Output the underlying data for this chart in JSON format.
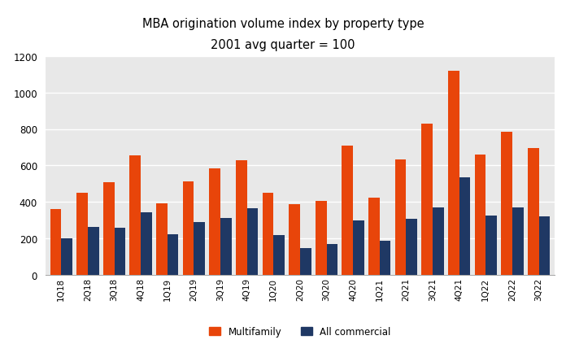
{
  "title_line1": "MBA origination volume index by property type",
  "title_line2": "2001 avg quarter = 100",
  "categories": [
    "1Q18",
    "2Q18",
    "3Q18",
    "4Q18",
    "1Q19",
    "2Q19",
    "3Q19",
    "4Q19",
    "1Q20",
    "2Q20",
    "3Q20",
    "4Q20",
    "1Q21",
    "2Q21",
    "3Q21",
    "4Q21",
    "1Q22",
    "2Q22",
    "3Q22"
  ],
  "multifamily": [
    360,
    450,
    510,
    655,
    395,
    515,
    585,
    630,
    450,
    390,
    405,
    710,
    425,
    635,
    830,
    1120,
    660,
    785,
    695
  ],
  "all_commercial": [
    200,
    265,
    260,
    345,
    225,
    290,
    315,
    365,
    220,
    150,
    170,
    300,
    190,
    310,
    370,
    535,
    325,
    370,
    320
  ],
  "multifamily_color": "#E8450A",
  "all_commercial_color": "#1F3864",
  "ylim": [
    0,
    1200
  ],
  "yticks": [
    0,
    200,
    400,
    600,
    800,
    1000,
    1200
  ],
  "legend_multifamily": "Multifamily",
  "legend_all_commercial": "All commercial",
  "background_color": "#ffffff",
  "plot_area_color": "#e8e8e8",
  "grid_color": "#ffffff",
  "bar_width": 0.42
}
